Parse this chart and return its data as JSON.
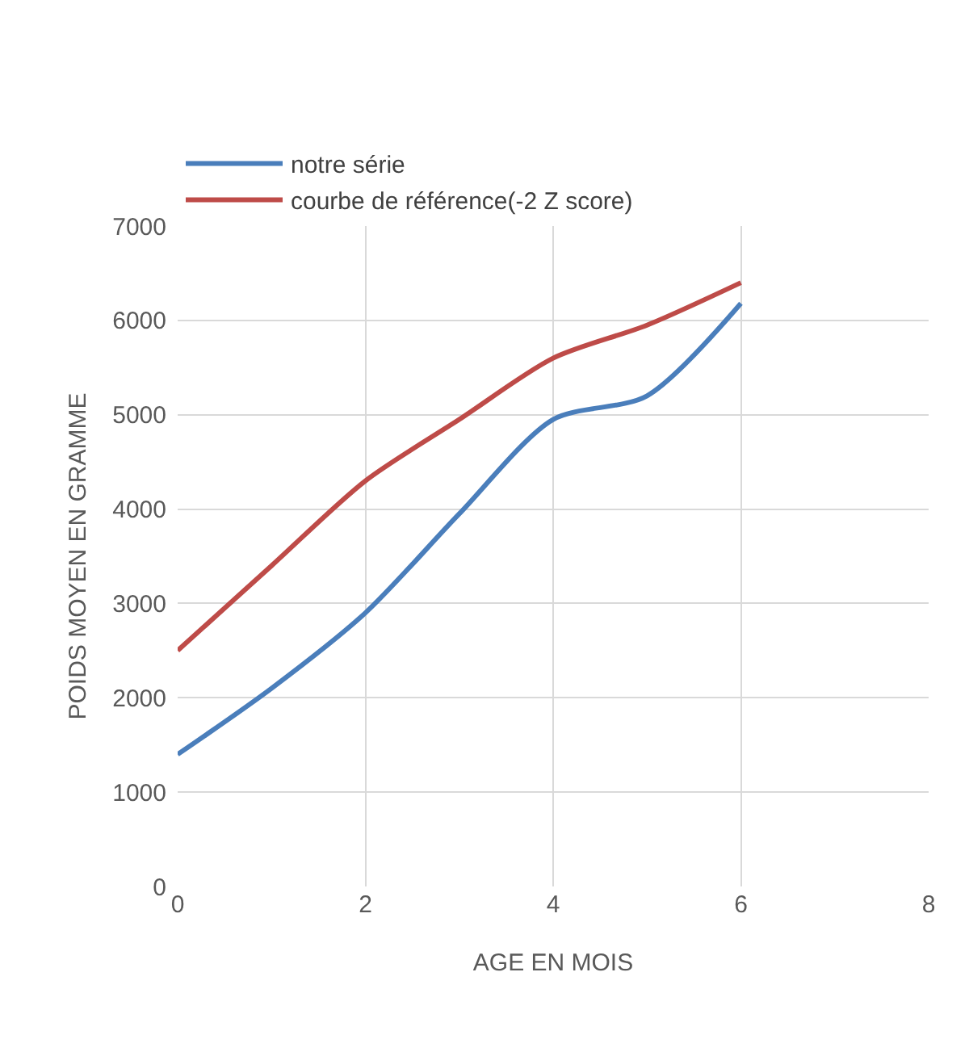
{
  "chart_data": {
    "type": "line",
    "xlabel": "AGE EN MOIS",
    "ylabel": "POIDS MOYEN EN GRAMME",
    "x": [
      0,
      1,
      2,
      3,
      4,
      5,
      6
    ],
    "series": [
      {
        "name": "notre série",
        "color": "#4a7ebb",
        "values": [
          1400,
          2100,
          2900,
          3950,
          4950,
          5200,
          6180
        ]
      },
      {
        "name": "courbe de référence(-2 Z score)",
        "color": "#be4b48",
        "values": [
          2500,
          3400,
          4300,
          4950,
          5600,
          5950,
          6400
        ]
      }
    ],
    "xlim": [
      0,
      8
    ],
    "xticks": [
      0,
      2,
      4,
      6,
      8
    ],
    "ylim": [
      0,
      7000
    ],
    "yticks": [
      0,
      1000,
      2000,
      3000,
      4000,
      5000,
      6000,
      7000
    ],
    "grid": true,
    "legend": "top",
    "marker": "none",
    "line_style": "solid"
  }
}
